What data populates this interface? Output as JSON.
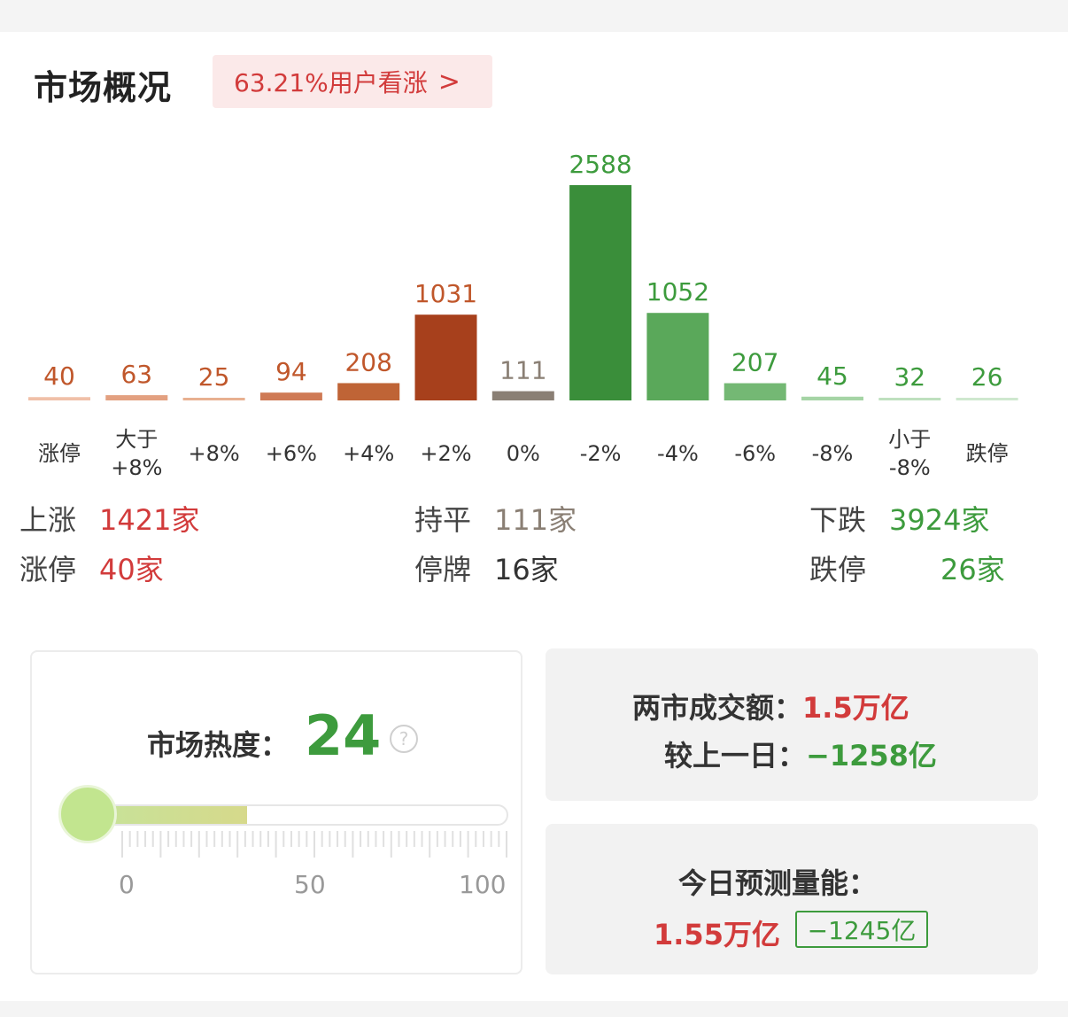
{
  "header": {
    "title": "市场概况",
    "sentiment_text": "63.21%用户看涨",
    "chevron": ">"
  },
  "colors": {
    "red": "#d23b3b",
    "green": "#3d9b3d",
    "neutral": "#8a7f74"
  },
  "chart_data": {
    "type": "bar",
    "categories": [
      [
        "涨停"
      ],
      [
        "大于",
        "+8%"
      ],
      [
        "+8%"
      ],
      [
        "+6%"
      ],
      [
        "+4%"
      ],
      [
        "+2%"
      ],
      [
        "0%"
      ],
      [
        "-2%"
      ],
      [
        "-4%"
      ],
      [
        "-6%"
      ],
      [
        "-8%"
      ],
      [
        "小于",
        "-8%"
      ],
      [
        "跌停"
      ]
    ],
    "values": [
      40,
      63,
      25,
      94,
      208,
      1031,
      111,
      2588,
      1052,
      207,
      45,
      32,
      26
    ],
    "bar_colors": [
      "#f0c0a8",
      "#e3a080",
      "#e8b090",
      "#cf7a55",
      "#bf6436",
      "#a7401c",
      "#8a7f74",
      "#3a8e3a",
      "#5aa85a",
      "#74b874",
      "#a5d4a5",
      "#bfe0bf",
      "#cfe8cf"
    ],
    "label_colors": [
      "#c0572b",
      "#c0572b",
      "#c0572b",
      "#c0572b",
      "#c0572b",
      "#c0572b",
      "#8a7f74",
      "#3d9b3d",
      "#3d9b3d",
      "#3d9b3d",
      "#3d9b3d",
      "#3d9b3d",
      "#3d9b3d"
    ],
    "title": "",
    "xlabel": "",
    "ylabel": "",
    "ylim": [
      0,
      2588
    ]
  },
  "summary": {
    "up_label": "上涨",
    "up_value": "1421家",
    "limit_up_label": "涨停",
    "limit_up_value": "40家",
    "flat_label": "持平",
    "flat_value": "111家",
    "suspended_label": "停牌",
    "suspended_value": "16家",
    "down_label": "下跌",
    "down_value": "3924家",
    "limit_down_label": "跌停",
    "limit_down_value": "26家"
  },
  "heat": {
    "label": "市场热度：",
    "value": "24",
    "level": 24,
    "help": "?",
    "tick_min": "0",
    "tick_mid": "50",
    "tick_max": "100"
  },
  "volume": {
    "turnover_label": "两市成交额：",
    "turnover_value": "1.5万亿",
    "change_label": "较上一日：",
    "change_value": "−1258亿"
  },
  "forecast": {
    "title": "今日预测量能：",
    "value": "1.55万亿",
    "delta": "−1245亿"
  }
}
